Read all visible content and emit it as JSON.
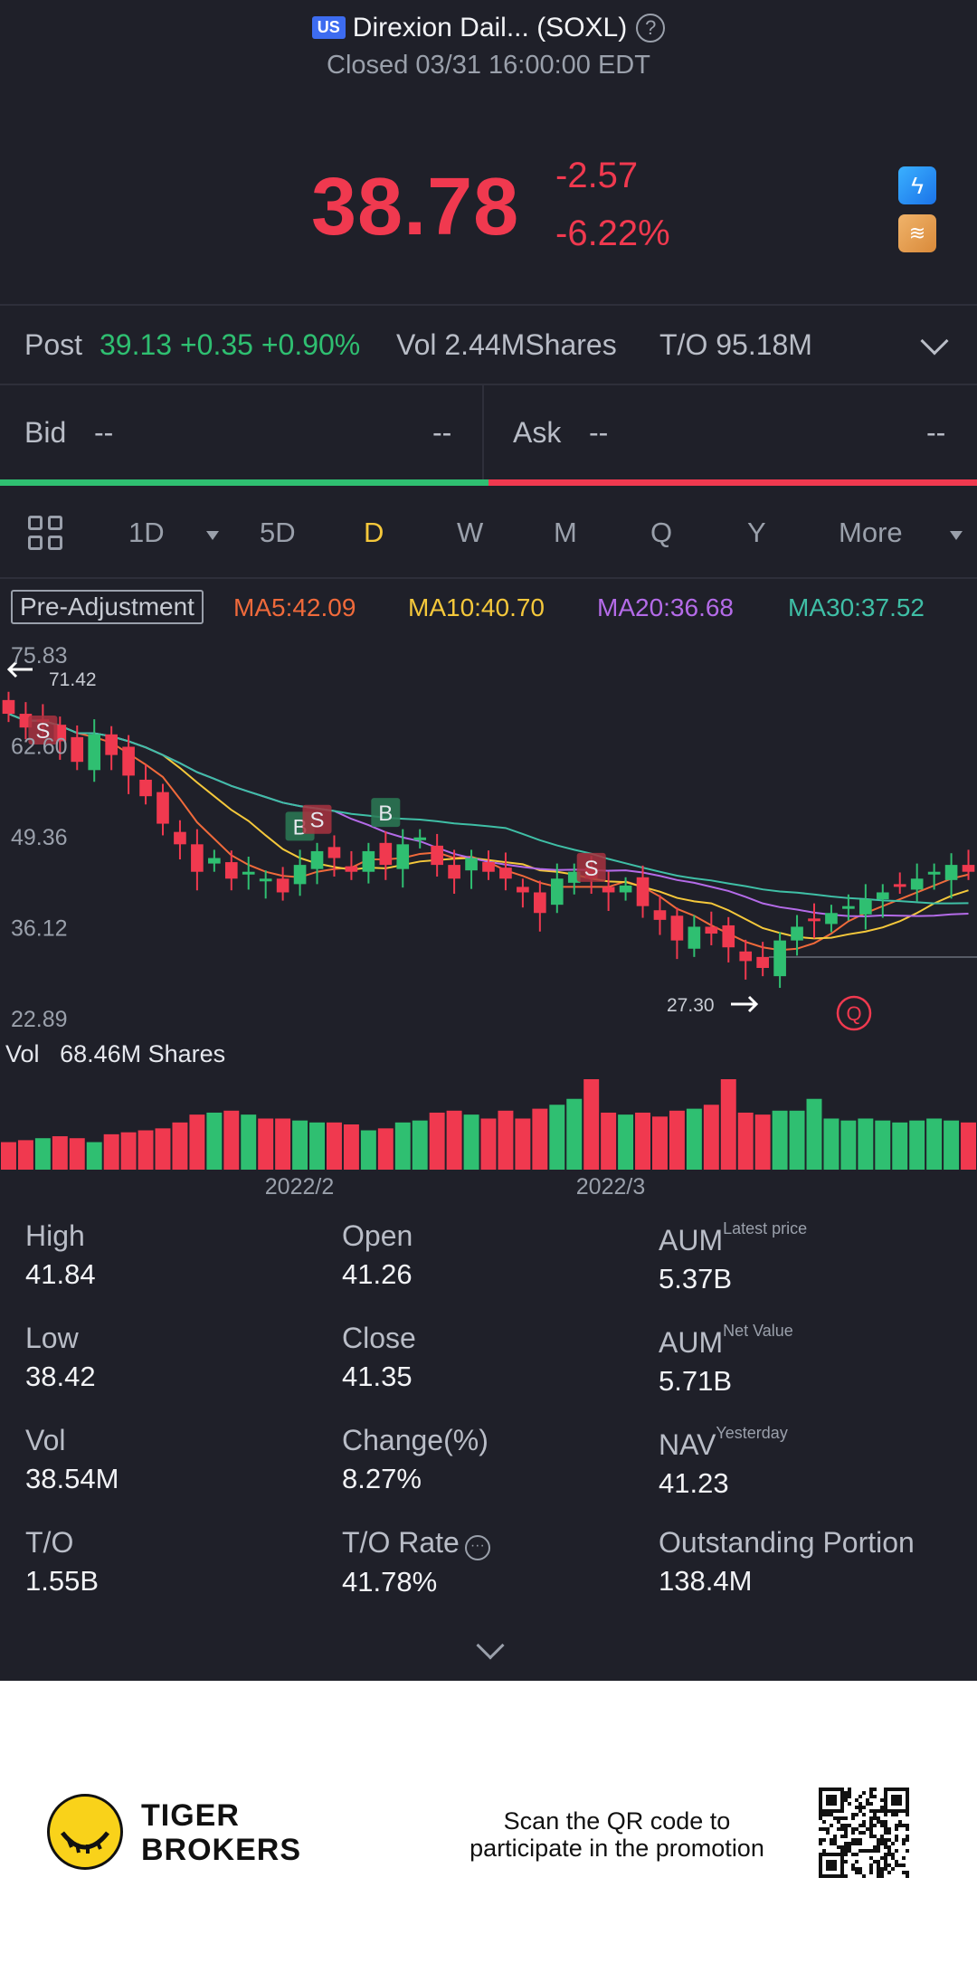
{
  "header": {
    "market_badge": "US",
    "title": "Direxion Dail... (SOXL)",
    "status": "Closed 03/31 16:00:00 EDT",
    "price": "38.78",
    "change": "-2.57",
    "change_pct": "-6.22%",
    "colors": {
      "down": "#f0394f",
      "up": "#2fbf71"
    }
  },
  "post": {
    "label": "Post",
    "value": "39.13 +0.35 +0.90%",
    "vol": "Vol 2.44MShares",
    "turnover": "T/O 95.18M"
  },
  "bidask": {
    "bid_label": "Bid",
    "bid_price": "--",
    "bid_size": "--",
    "ask_label": "Ask",
    "ask_price": "--",
    "ask_size": "--",
    "bid_ratio": 0.5
  },
  "tabs": [
    "1D",
    "5D",
    "D",
    "W",
    "M",
    "Q",
    "Y",
    "More"
  ],
  "active_tab": "D",
  "indicators": {
    "adjust": "Pre-Adjustment",
    "ma5": "MA5:42.09",
    "ma10": "MA10:40.70",
    "ma20": "MA20:36.68",
    "ma30": "MA30:37.52"
  },
  "chart_data": {
    "type": "candlestick",
    "y_ticks": [
      "75.83",
      "62.60",
      "49.36",
      "36.12",
      "22.89"
    ],
    "ylim": [
      22.89,
      75.83
    ],
    "high_marker": "71.42",
    "low_marker": "27.30",
    "x_labels": [
      "2022/2",
      "2022/3"
    ],
    "volume_label": "Vol",
    "volume_value": "68.46M Shares",
    "trade_marks": [
      "S",
      "B",
      "S",
      "B",
      "S"
    ],
    "close_series": [
      67,
      65,
      66,
      63,
      60,
      64,
      61,
      58,
      55,
      51,
      48,
      44,
      46,
      43,
      44,
      43,
      41,
      45,
      47,
      46,
      44,
      47,
      45,
      48,
      49,
      45,
      43,
      46,
      44,
      43,
      41,
      38,
      43,
      44,
      43,
      41,
      42,
      39,
      37,
      34,
      36,
      35,
      33,
      31,
      30,
      34,
      36,
      37,
      38,
      39,
      40,
      41,
      42,
      43,
      44,
      45,
      44
    ],
    "volume_series": [
      14,
      15,
      16,
      17,
      16,
      14,
      18,
      19,
      20,
      21,
      24,
      28,
      29,
      30,
      28,
      26,
      26,
      25,
      24,
      24,
      23,
      20,
      21,
      24,
      25,
      29,
      30,
      28,
      26,
      30,
      26,
      31,
      33,
      36,
      46,
      29,
      28,
      29,
      27,
      30,
      31,
      33,
      46,
      29,
      28,
      30,
      30,
      36,
      26,
      25,
      26,
      25,
      24,
      25,
      26,
      25,
      24
    ]
  },
  "stats": [
    {
      "k": "High",
      "v": "41.84"
    },
    {
      "k": "Open",
      "v": "41.26"
    },
    {
      "k": "AUM",
      "sup": "Latest price",
      "v": "5.37B"
    },
    {
      "k": "Low",
      "v": "38.42"
    },
    {
      "k": "Close",
      "v": "41.35"
    },
    {
      "k": "AUM",
      "sup": "Net Value",
      "v": "5.71B"
    },
    {
      "k": "Vol",
      "v": "38.54M"
    },
    {
      "k": "Change(%)",
      "v": "8.27%"
    },
    {
      "k": "NAV",
      "sup": "Yesterday",
      "v": "41.23"
    },
    {
      "k": "T/O",
      "v": "1.55B"
    },
    {
      "k": "T/O Rate",
      "v": "41.78%"
    },
    {
      "k": "Outstanding Portion",
      "v": "138.4M"
    }
  ],
  "footer": {
    "brand_line1": "TIGER",
    "brand_line2": "BROKERS",
    "promo_line1": "Scan the QR code to",
    "promo_line2": "participate in the promotion"
  }
}
